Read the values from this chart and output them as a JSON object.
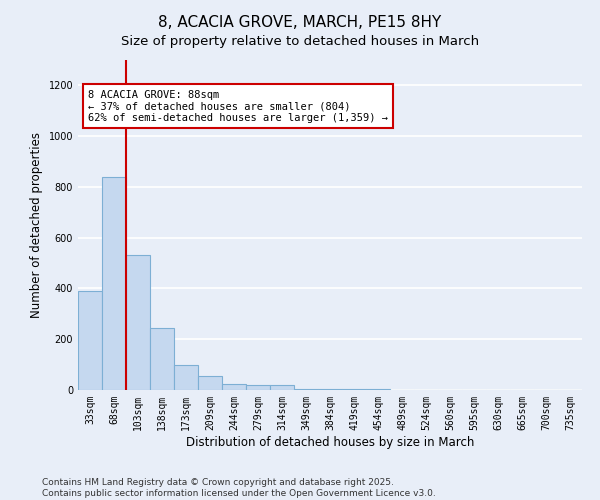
{
  "title": "8, ACACIA GROVE, MARCH, PE15 8HY",
  "subtitle": "Size of property relative to detached houses in March",
  "xlabel": "Distribution of detached houses by size in March",
  "ylabel": "Number of detached properties",
  "categories": [
    "33sqm",
    "68sqm",
    "103sqm",
    "138sqm",
    "173sqm",
    "209sqm",
    "244sqm",
    "279sqm",
    "314sqm",
    "349sqm",
    "384sqm",
    "419sqm",
    "454sqm",
    "489sqm",
    "524sqm",
    "560sqm",
    "595sqm",
    "630sqm",
    "665sqm",
    "700sqm",
    "735sqm"
  ],
  "values": [
    390,
    840,
    530,
    245,
    100,
    55,
    25,
    20,
    20,
    5,
    5,
    5,
    5,
    0,
    0,
    0,
    0,
    0,
    0,
    0,
    0
  ],
  "bar_color": "#c5d8ef",
  "bar_edge_color": "#7dafd4",
  "background_color": "#e8eef8",
  "grid_color": "#ffffff",
  "ylim": [
    0,
    1300
  ],
  "yticks": [
    0,
    200,
    400,
    600,
    800,
    1000,
    1200
  ],
  "property_line_x": 1.5,
  "property_line_color": "#cc0000",
  "annotation_text": "8 ACACIA GROVE: 88sqm\n← 37% of detached houses are smaller (804)\n62% of semi-detached houses are larger (1,359) →",
  "annotation_box_edge": "#cc0000",
  "footer_text": "Contains HM Land Registry data © Crown copyright and database right 2025.\nContains public sector information licensed under the Open Government Licence v3.0.",
  "title_fontsize": 11,
  "subtitle_fontsize": 9.5,
  "label_fontsize": 8.5,
  "tick_fontsize": 7,
  "footer_fontsize": 6.5
}
